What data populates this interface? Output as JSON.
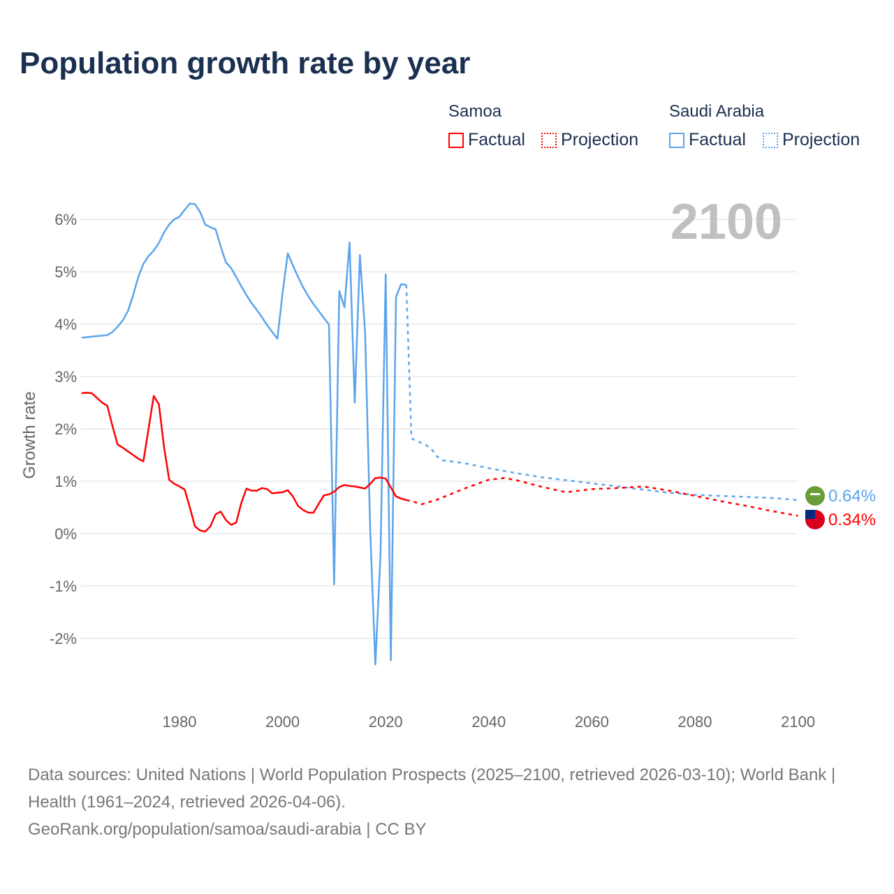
{
  "title": "Population growth rate by year",
  "legend": {
    "groups": [
      {
        "name": "Samoa",
        "factual": "Factual",
        "projection": "Projection",
        "color": "#ff0000"
      },
      {
        "name": "Saudi Arabia",
        "factual": "Factual",
        "projection": "Projection",
        "color": "#5ba4ec"
      }
    ]
  },
  "year_label": "2100",
  "footer": {
    "sources": "Data sources: United Nations | World Population Prospects (2025–2100, retrieved 2026-03-10); World Bank | Health (1961–2024, retrieved 2026-04-06).",
    "link": "GeoRank.org/population/samoa/saudi-arabia | CC BY"
  },
  "chart_data": {
    "type": "line",
    "title": "Population growth rate by year",
    "xlabel": "",
    "ylabel": "Growth rate",
    "xlim": [
      1961,
      2100
    ],
    "ylim": [
      -3.2,
      6.6
    ],
    "xticks": [
      1980,
      2000,
      2020,
      2040,
      2060,
      2080,
      2100
    ],
    "yticks": [
      -2,
      -1,
      0,
      1,
      2,
      3,
      4,
      5,
      6
    ],
    "ytick_labels": [
      "-2%",
      "-1%",
      "0%",
      "1%",
      "2%",
      "3%",
      "4%",
      "5%",
      "6%"
    ],
    "grid": true,
    "series": [
      {
        "name": "Saudi Arabia",
        "kind": "factual",
        "color": "#5ba4ec",
        "x": [
          1961,
          1962,
          1963,
          1964,
          1965,
          1966,
          1967,
          1968,
          1969,
          1970,
          1971,
          1972,
          1973,
          1974,
          1975,
          1976,
          1977,
          1978,
          1979,
          1980,
          1981,
          1982,
          1983,
          1984,
          1985,
          1986,
          1987,
          1988,
          1989,
          1990,
          1991,
          1992,
          1993,
          1994,
          1995,
          1996,
          1997,
          1998,
          1999,
          2000,
          2001,
          2002,
          2003,
          2004,
          2005,
          2006,
          2007,
          2008,
          2009,
          2010,
          2011,
          2012,
          2013,
          2014,
          2015,
          2016,
          2017,
          2018,
          2019,
          2020,
          2021,
          2022,
          2023,
          2024
        ],
        "y": [
          3.74,
          3.75,
          3.76,
          3.77,
          3.78,
          3.79,
          3.85,
          3.95,
          4.07,
          4.25,
          4.55,
          4.9,
          5.15,
          5.3,
          5.4,
          5.55,
          5.75,
          5.9,
          6.0,
          6.05,
          6.18,
          6.3,
          6.29,
          6.14,
          5.9,
          5.85,
          5.81,
          5.48,
          5.18,
          5.07,
          4.9,
          4.72,
          4.55,
          4.4,
          4.27,
          4.13,
          3.98,
          3.85,
          3.72,
          4.6,
          5.35,
          5.12,
          4.9,
          4.7,
          4.53,
          4.38,
          4.25,
          4.12,
          3.99,
          -0.97,
          4.63,
          4.32,
          5.56,
          2.5,
          5.32,
          3.85,
          0.05,
          -2.5,
          -0.4,
          4.95,
          -2.42,
          4.52,
          4.76,
          4.75
        ]
      },
      {
        "name": "Saudi Arabia",
        "kind": "projection",
        "color": "#5ba4ec",
        "x": [
          2024,
          2025,
          2026,
          2027,
          2028,
          2029,
          2030,
          2031,
          2035,
          2040,
          2045,
          2050,
          2055,
          2060,
          2065,
          2070,
          2075,
          2080,
          2085,
          2090,
          2095,
          2100
        ],
        "y": [
          4.75,
          1.82,
          1.77,
          1.73,
          1.68,
          1.6,
          1.47,
          1.4,
          1.35,
          1.25,
          1.16,
          1.08,
          1.02,
          0.96,
          0.9,
          0.84,
          0.78,
          0.74,
          0.72,
          0.7,
          0.68,
          0.64
        ]
      },
      {
        "name": "Samoa",
        "kind": "factual",
        "color": "#ff0000",
        "x": [
          1961,
          1962,
          1963,
          1964,
          1965,
          1966,
          1967,
          1968,
          1969,
          1970,
          1971,
          1972,
          1973,
          1974,
          1975,
          1976,
          1977,
          1978,
          1979,
          1980,
          1981,
          1982,
          1983,
          1984,
          1985,
          1986,
          1987,
          1988,
          1989,
          1990,
          1991,
          1992,
          1993,
          1994,
          1995,
          1996,
          1997,
          1998,
          1999,
          2000,
          2001,
          2002,
          2003,
          2004,
          2005,
          2006,
          2007,
          2008,
          2009,
          2010,
          2011,
          2012,
          2013,
          2014,
          2015,
          2016,
          2017,
          2018,
          2019,
          2020,
          2021,
          2022,
          2023,
          2024
        ],
        "y": [
          2.68,
          2.69,
          2.68,
          2.59,
          2.5,
          2.44,
          2.05,
          1.7,
          1.64,
          1.57,
          1.5,
          1.43,
          1.38,
          2.0,
          2.63,
          2.47,
          1.65,
          1.03,
          0.95,
          0.9,
          0.84,
          0.5,
          0.14,
          0.06,
          0.04,
          0.14,
          0.37,
          0.42,
          0.26,
          0.17,
          0.21,
          0.59,
          0.86,
          0.82,
          0.82,
          0.87,
          0.85,
          0.77,
          0.78,
          0.79,
          0.83,
          0.71,
          0.53,
          0.45,
          0.4,
          0.4,
          0.57,
          0.73,
          0.75,
          0.8,
          0.89,
          0.93,
          0.91,
          0.9,
          0.88,
          0.86,
          0.95,
          1.06,
          1.07,
          1.05,
          0.88,
          0.71,
          0.67,
          0.64
        ]
      },
      {
        "name": "Samoa",
        "kind": "projection",
        "color": "#ff0000",
        "x": [
          2024,
          2025,
          2027,
          2030,
          2035,
          2040,
          2043,
          2045,
          2050,
          2055,
          2060,
          2065,
          2070,
          2075,
          2080,
          2085,
          2090,
          2095,
          2100
        ],
        "y": [
          0.64,
          0.62,
          0.56,
          0.65,
          0.85,
          1.03,
          1.06,
          1.03,
          0.9,
          0.79,
          0.85,
          0.87,
          0.9,
          0.82,
          0.72,
          0.62,
          0.53,
          0.43,
          0.34
        ]
      }
    ],
    "end_labels": [
      {
        "country": "Saudi Arabia",
        "value": "0.64%",
        "color": "#5ba4ec",
        "flag_color": "#6a9c3a"
      },
      {
        "country": "Samoa",
        "value": "0.34%",
        "color": "#ff0000",
        "flag_color": "#d9001f"
      }
    ]
  }
}
